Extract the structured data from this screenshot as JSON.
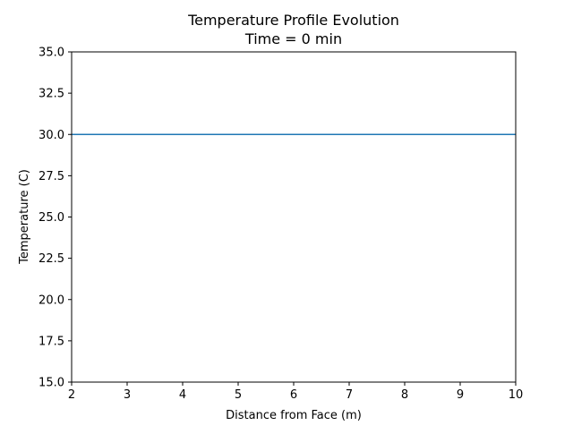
{
  "chart_data": {
    "type": "line",
    "title": "Temperature Profile Evolution",
    "subtitle": "Time = 0 min",
    "xlabel": "Distance from Face (m)",
    "ylabel": "Temperature (C)",
    "xlim": [
      2,
      10
    ],
    "ylim": [
      15,
      35
    ],
    "xticks": [
      2,
      3,
      4,
      5,
      6,
      7,
      8,
      9,
      10
    ],
    "xtick_labels": [
      "2",
      "3",
      "4",
      "5",
      "6",
      "7",
      "8",
      "9",
      "10"
    ],
    "yticks": [
      15,
      17.5,
      20,
      22.5,
      25,
      27.5,
      30,
      32.5,
      35
    ],
    "ytick_labels": [
      "15.0",
      "17.5",
      "20.0",
      "22.5",
      "25.0",
      "27.5",
      "30.0",
      "32.5",
      "35.0"
    ],
    "grid": false,
    "series": [
      {
        "x": [
          2,
          10
        ],
        "y": [
          30,
          30
        ],
        "color": "#1f77b4"
      }
    ]
  }
}
